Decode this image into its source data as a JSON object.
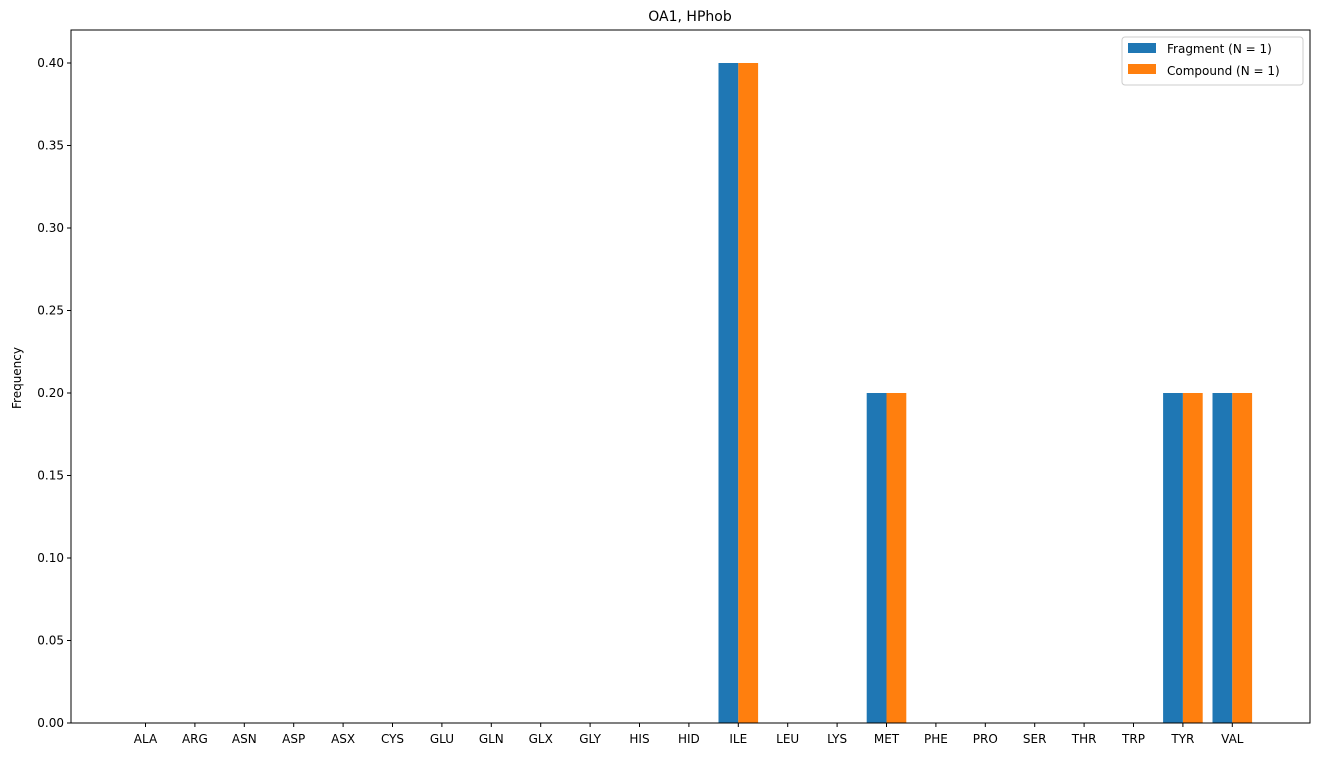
{
  "chart_data": {
    "type": "bar",
    "title": "OA1, HPhob",
    "xlabel": "",
    "ylabel": "Frequency",
    "ylim": [
      0,
      0.42
    ],
    "yticks": [
      "0.00",
      "0.05",
      "0.10",
      "0.15",
      "0.20",
      "0.25",
      "0.30",
      "0.35",
      "0.40"
    ],
    "grid": false,
    "legend_position": "top-right",
    "categories": [
      "ALA",
      "ARG",
      "ASN",
      "ASP",
      "ASX",
      "CYS",
      "GLU",
      "GLN",
      "GLX",
      "GLY",
      "HIS",
      "HID",
      "ILE",
      "LEU",
      "LYS",
      "MET",
      "PHE",
      "PRO",
      "SER",
      "THR",
      "TRP",
      "TYR",
      "VAL"
    ],
    "series": [
      {
        "name": "Fragment (N = 1)",
        "color": "#1f77b4",
        "values": [
          0,
          0,
          0,
          0,
          0,
          0,
          0,
          0,
          0,
          0,
          0,
          0,
          0.4,
          0,
          0,
          0.2,
          0,
          0,
          0,
          0,
          0,
          0.2,
          0.2
        ]
      },
      {
        "name": "Compound (N = 1)",
        "color": "#ff7f0e",
        "values": [
          0,
          0,
          0,
          0,
          0,
          0,
          0,
          0,
          0,
          0,
          0,
          0,
          0.4,
          0,
          0,
          0.2,
          0,
          0,
          0,
          0,
          0,
          0.2,
          0.2
        ]
      }
    ]
  }
}
